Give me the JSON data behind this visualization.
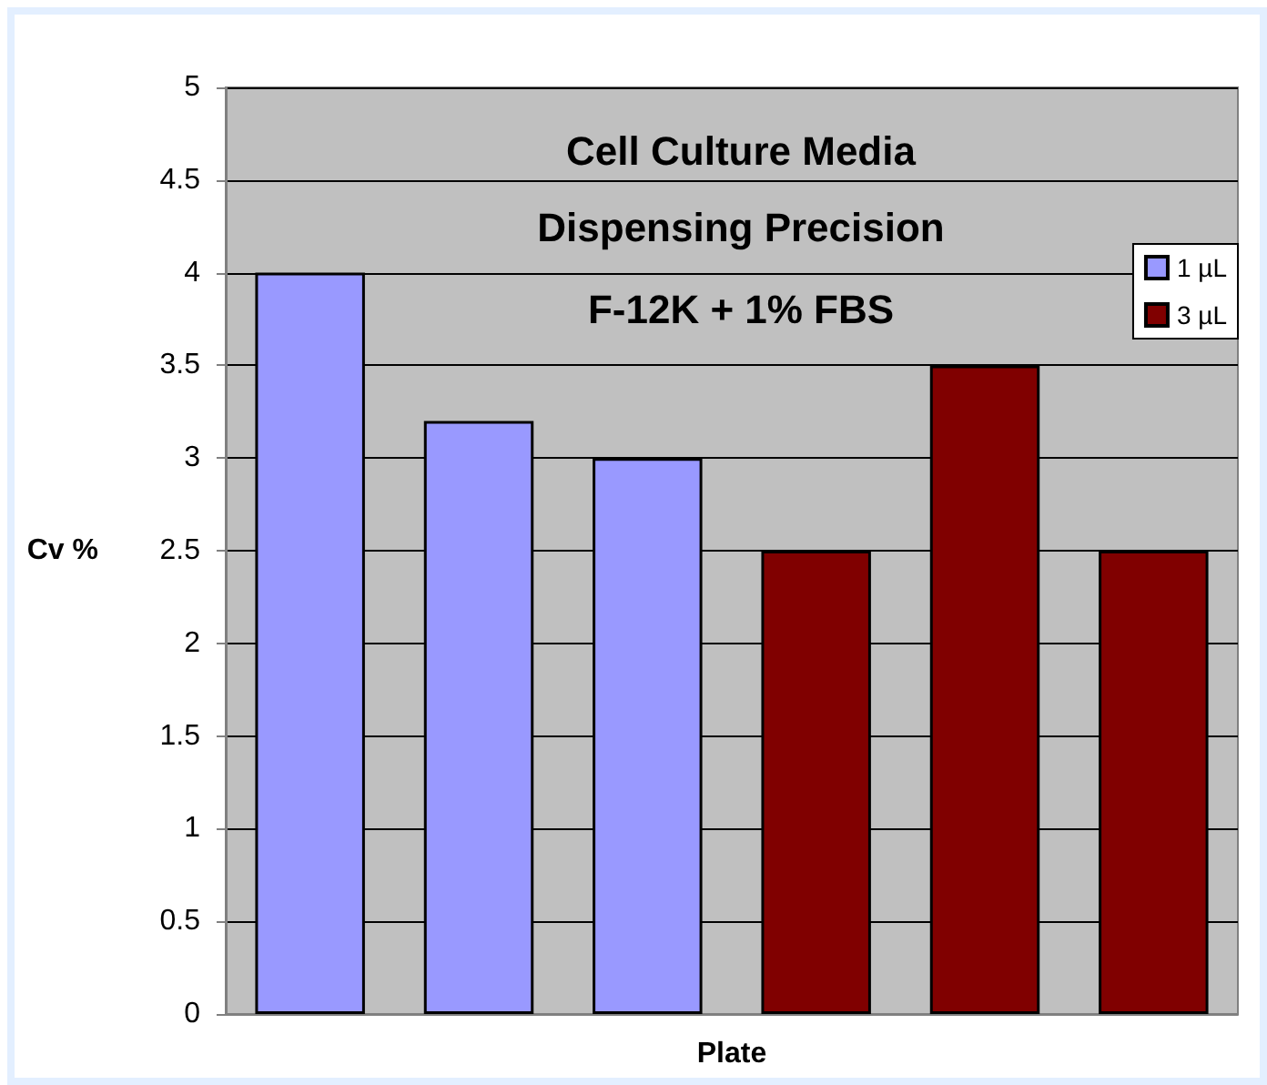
{
  "chart_data": {
    "type": "bar",
    "title": "Cell Culture Media\nDispensing Precision",
    "subtitle": "F-12K + 1% FBS",
    "xlabel": "Plate",
    "ylabel": "Cv %",
    "categories": [
      null,
      null,
      null,
      null,
      null,
      null
    ],
    "series": [
      {
        "name": "1 µL",
        "color": "#9999ff",
        "values": [
          4,
          3.2,
          3,
          null,
          null,
          null
        ]
      },
      {
        "name": "3 µL",
        "color": "#800000",
        "values": [
          null,
          null,
          null,
          2.5,
          3.5,
          2.5
        ]
      }
    ],
    "ylim": [
      0,
      5
    ],
    "yticks": [
      0,
      0.5,
      1,
      1.5,
      2,
      2.5,
      3,
      3.5,
      4,
      4.5,
      5
    ],
    "grid": "y",
    "legend": "top right"
  }
}
